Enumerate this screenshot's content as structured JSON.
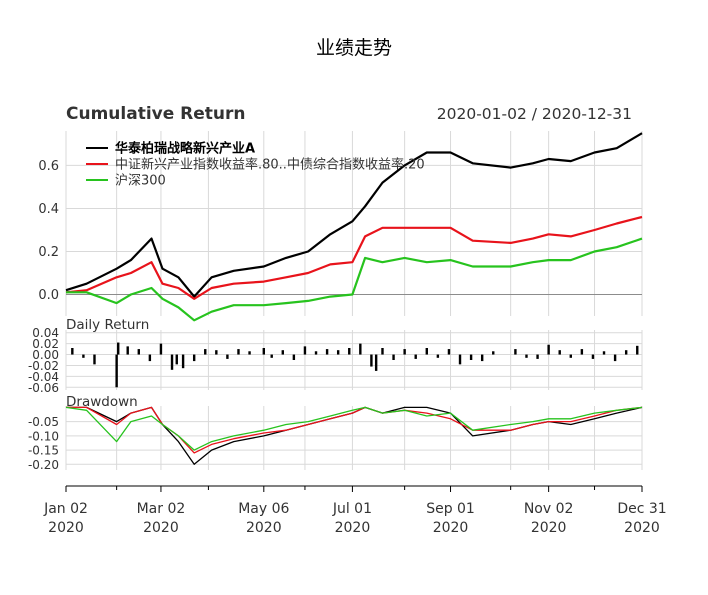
{
  "page": {
    "title": "业绩走势"
  },
  "chart_data": [
    {
      "panel": "cumulative",
      "type": "line",
      "title": "Cumulative Return",
      "date_range": "2020-01-02 / 2020-12-31",
      "ylim": [
        -0.1,
        0.76
      ],
      "yticks": [
        0.0,
        0.2,
        0.4,
        0.6
      ],
      "ytick_labels": [
        "0.0",
        "0.2",
        "0.4",
        "0.6"
      ],
      "grid": true,
      "legend_position": "top-left",
      "x_dates": [
        "2020-01-02",
        "2020-01-15",
        "2020-02-03",
        "2020-02-12",
        "2020-02-25",
        "2020-03-03",
        "2020-03-13",
        "2020-03-23",
        "2020-04-03",
        "2020-04-17",
        "2020-05-06",
        "2020-05-20",
        "2020-06-03",
        "2020-06-17",
        "2020-07-01",
        "2020-07-09",
        "2020-07-20",
        "2020-08-03",
        "2020-08-17",
        "2020-09-01",
        "2020-09-15",
        "2020-10-09",
        "2020-10-23",
        "2020-11-02",
        "2020-11-16",
        "2020-12-01",
        "2020-12-15",
        "2020-12-31"
      ],
      "series": [
        {
          "name": "华泰柏瑞战略新兴产业A",
          "color": "#000000",
          "values": [
            0.02,
            0.05,
            0.12,
            0.16,
            0.26,
            0.12,
            0.08,
            -0.01,
            0.08,
            0.11,
            0.13,
            0.17,
            0.2,
            0.28,
            0.34,
            0.41,
            0.52,
            0.6,
            0.66,
            0.66,
            0.61,
            0.59,
            0.61,
            0.63,
            0.62,
            0.66,
            0.68,
            0.75
          ]
        },
        {
          "name": "中证新兴产业指数收益率.80..中债综合指数收益率.20",
          "color": "#e8131b",
          "values": [
            0.01,
            0.02,
            0.08,
            0.1,
            0.15,
            0.05,
            0.03,
            -0.02,
            0.03,
            0.05,
            0.06,
            0.08,
            0.1,
            0.14,
            0.15,
            0.27,
            0.31,
            0.31,
            0.31,
            0.31,
            0.25,
            0.24,
            0.26,
            0.28,
            0.27,
            0.3,
            0.33,
            0.36
          ]
        },
        {
          "name": "沪深300",
          "color": "#27c31e",
          "values": [
            0.01,
            0.01,
            -0.04,
            0.0,
            0.03,
            -0.02,
            -0.06,
            -0.12,
            -0.08,
            -0.05,
            -0.05,
            -0.04,
            -0.03,
            -0.01,
            0.0,
            0.17,
            0.15,
            0.17,
            0.15,
            0.16,
            0.13,
            0.13,
            0.15,
            0.16,
            0.16,
            0.2,
            0.22,
            0.26
          ]
        }
      ]
    },
    {
      "panel": "daily",
      "type": "bar",
      "title": "Daily Return",
      "ylim": [
        -0.065,
        0.045
      ],
      "yticks": [
        0.04,
        0.02,
        0.0,
        -0.02,
        -0.04,
        -0.06
      ],
      "ytick_labels": [
        "0.04",
        "0.02",
        "0.00",
        "-0.02",
        "-0.04",
        "-0.06"
      ],
      "grid": true,
      "x_dates": [
        "2020-01-06",
        "2020-01-13",
        "2020-01-20",
        "2020-02-03",
        "2020-02-04",
        "2020-02-10",
        "2020-02-17",
        "2020-02-24",
        "2020-03-02",
        "2020-03-09",
        "2020-03-12",
        "2020-03-16",
        "2020-03-23",
        "2020-03-30",
        "2020-04-06",
        "2020-04-13",
        "2020-04-20",
        "2020-04-27",
        "2020-05-06",
        "2020-05-11",
        "2020-05-18",
        "2020-05-25",
        "2020-06-01",
        "2020-06-08",
        "2020-06-15",
        "2020-06-22",
        "2020-06-29",
        "2020-07-06",
        "2020-07-13",
        "2020-07-16",
        "2020-07-20",
        "2020-07-27",
        "2020-08-03",
        "2020-08-10",
        "2020-08-17",
        "2020-08-24",
        "2020-08-31",
        "2020-09-07",
        "2020-09-14",
        "2020-09-21",
        "2020-09-28",
        "2020-10-12",
        "2020-10-19",
        "2020-10-26",
        "2020-11-02",
        "2020-11-09",
        "2020-11-16",
        "2020-11-23",
        "2020-11-30",
        "2020-12-07",
        "2020-12-14",
        "2020-12-21",
        "2020-12-28"
      ],
      "values": [
        0.012,
        -0.006,
        -0.018,
        -0.06,
        0.022,
        0.015,
        0.01,
        -0.012,
        0.02,
        -0.028,
        -0.018,
        -0.025,
        -0.012,
        0.01,
        0.008,
        -0.008,
        0.01,
        0.006,
        0.012,
        -0.006,
        0.008,
        -0.01,
        0.015,
        0.006,
        0.01,
        0.008,
        0.012,
        0.02,
        -0.022,
        -0.03,
        0.012,
        -0.01,
        0.01,
        -0.008,
        0.012,
        -0.006,
        0.01,
        -0.018,
        -0.01,
        -0.012,
        0.006,
        0.01,
        -0.006,
        -0.008,
        0.018,
        0.008,
        -0.006,
        0.01,
        -0.008,
        0.006,
        -0.012,
        0.008,
        0.016
      ]
    },
    {
      "panel": "drawdown",
      "type": "line",
      "title": "Drawdown",
      "ylim": [
        -0.22,
        0.005
      ],
      "yticks": [
        -0.05,
        -0.1,
        -0.15,
        -0.2
      ],
      "ytick_labels": [
        "-0.05",
        "-0.10",
        "-0.15",
        "-0.20"
      ],
      "grid": true,
      "x_dates": [
        "2020-01-02",
        "2020-01-15",
        "2020-02-03",
        "2020-02-12",
        "2020-02-25",
        "2020-03-03",
        "2020-03-13",
        "2020-03-23",
        "2020-04-03",
        "2020-04-17",
        "2020-05-06",
        "2020-05-20",
        "2020-06-03",
        "2020-06-17",
        "2020-07-01",
        "2020-07-09",
        "2020-07-20",
        "2020-08-03",
        "2020-08-17",
        "2020-09-01",
        "2020-09-15",
        "2020-10-09",
        "2020-10-23",
        "2020-11-02",
        "2020-11-16",
        "2020-12-01",
        "2020-12-15",
        "2020-12-31"
      ],
      "series": [
        {
          "name": "华泰柏瑞战略新兴产业A",
          "color": "#000000",
          "values": [
            0.0,
            0.0,
            -0.05,
            -0.02,
            0.0,
            -0.06,
            -0.12,
            -0.2,
            -0.15,
            -0.12,
            -0.1,
            -0.08,
            -0.06,
            -0.04,
            -0.02,
            0.0,
            -0.02,
            0.0,
            0.0,
            -0.02,
            -0.1,
            -0.08,
            -0.06,
            -0.05,
            -0.06,
            -0.04,
            -0.02,
            0.0
          ]
        },
        {
          "name": "中证新兴产业指数收益率.80..中债综合指数收益率.20",
          "color": "#e8131b",
          "values": [
            0.0,
            0.0,
            -0.06,
            -0.02,
            0.0,
            -0.06,
            -0.1,
            -0.16,
            -0.13,
            -0.11,
            -0.09,
            -0.08,
            -0.06,
            -0.04,
            -0.02,
            0.0,
            -0.02,
            -0.01,
            -0.02,
            -0.04,
            -0.08,
            -0.08,
            -0.06,
            -0.05,
            -0.05,
            -0.03,
            -0.01,
            0.0
          ]
        },
        {
          "name": "沪深300",
          "color": "#27c31e",
          "values": [
            0.0,
            -0.01,
            -0.12,
            -0.05,
            -0.03,
            -0.06,
            -0.1,
            -0.15,
            -0.12,
            -0.1,
            -0.08,
            -0.06,
            -0.05,
            -0.03,
            -0.01,
            0.0,
            -0.02,
            -0.01,
            -0.03,
            -0.02,
            -0.08,
            -0.06,
            -0.05,
            -0.04,
            -0.04,
            -0.02,
            -0.01,
            0.0
          ]
        }
      ]
    }
  ],
  "x_axis": {
    "range": [
      "2020-01-02",
      "2020-12-31"
    ],
    "ticks": [
      {
        "date": "2020-01-02",
        "label": "Jan 02",
        "year": "2020"
      },
      {
        "date": "2020-03-02",
        "label": "Mar 02",
        "year": "2020"
      },
      {
        "date": "2020-05-06",
        "label": "May 06",
        "year": "2020"
      },
      {
        "date": "2020-07-01",
        "label": "Jul 01",
        "year": "2020"
      },
      {
        "date": "2020-09-01",
        "label": "Sep 01",
        "year": "2020"
      },
      {
        "date": "2020-11-02",
        "label": "Nov 02",
        "year": "2020"
      },
      {
        "date": "2020-12-31",
        "label": "Dec 31",
        "year": "2020"
      }
    ],
    "minor_ticks": [
      "2020-02-03",
      "2020-04-01",
      "2020-06-01",
      "2020-08-03",
      "2020-10-09",
      "2020-12-01"
    ]
  }
}
